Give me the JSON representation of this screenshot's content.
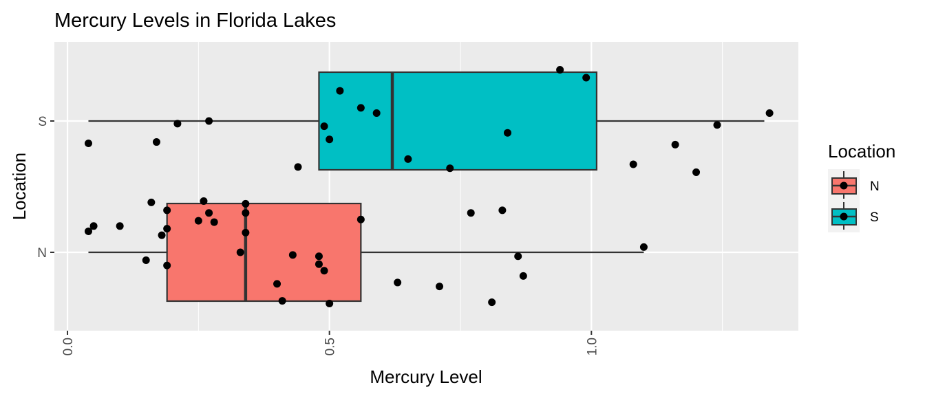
{
  "chart_data": {
    "type": "boxplot",
    "orientation": "horizontal",
    "title": "Mercury Levels in Florida Lakes",
    "xlabel": "Mercury Level",
    "ylabel": "Location",
    "xlim": [
      -0.025,
      1.395
    ],
    "x_ticks": [
      0.0,
      0.5,
      1.0
    ],
    "x_tick_labels": [
      "0.0",
      "0.5",
      "1.0"
    ],
    "categories": [
      "N",
      "S"
    ],
    "grid": true,
    "legend": {
      "title": "Location",
      "position": "right",
      "entries": [
        {
          "label": "N",
          "color": "#F8766D"
        },
        {
          "label": "S",
          "color": "#00BFC4"
        }
      ]
    },
    "series": [
      {
        "category": "N",
        "color": "#F8766D",
        "box": {
          "whisker_low": 0.04,
          "q1": 0.19,
          "median": 0.34,
          "q3": 0.56,
          "whisker_high": 1.1
        },
        "points": [
          [
            0.04,
            0.16
          ],
          [
            0.05,
            0.2
          ],
          [
            0.1,
            0.2
          ],
          [
            0.15,
            -0.06
          ],
          [
            0.16,
            0.38
          ],
          [
            0.18,
            0.13
          ],
          [
            0.19,
            0.32
          ],
          [
            0.19,
            0.18
          ],
          [
            0.19,
            -0.1
          ],
          [
            0.25,
            0.24
          ],
          [
            0.26,
            0.39
          ],
          [
            0.27,
            0.3
          ],
          [
            0.28,
            0.23
          ],
          [
            0.33,
            0.0
          ],
          [
            0.34,
            0.37
          ],
          [
            0.34,
            0.3
          ],
          [
            0.34,
            0.15
          ],
          [
            0.4,
            -0.24
          ],
          [
            0.41,
            -0.37
          ],
          [
            0.43,
            -0.02
          ],
          [
            0.48,
            -0.03
          ],
          [
            0.48,
            -0.09
          ],
          [
            0.49,
            -0.14
          ],
          [
            0.5,
            -0.39
          ],
          [
            0.56,
            0.25
          ],
          [
            0.63,
            -0.23
          ],
          [
            0.71,
            -0.26
          ],
          [
            0.77,
            0.3
          ],
          [
            0.81,
            -0.38
          ],
          [
            0.83,
            0.32
          ],
          [
            0.86,
            -0.03
          ],
          [
            0.87,
            -0.18
          ],
          [
            1.1,
            0.04
          ]
        ]
      },
      {
        "category": "S",
        "color": "#00BFC4",
        "box": {
          "whisker_low": 0.04,
          "q1": 0.48,
          "median": 0.62,
          "q3": 1.01,
          "whisker_high": 1.33
        },
        "points": [
          [
            0.04,
            -0.17
          ],
          [
            0.17,
            -0.16
          ],
          [
            0.21,
            -0.02
          ],
          [
            0.27,
            0.0
          ],
          [
            0.44,
            -0.35
          ],
          [
            0.49,
            -0.04
          ],
          [
            0.5,
            -0.14
          ],
          [
            0.52,
            0.23
          ],
          [
            0.56,
            0.1
          ],
          [
            0.59,
            0.06
          ],
          [
            0.65,
            -0.29
          ],
          [
            0.73,
            -0.36
          ],
          [
            0.84,
            -0.09
          ],
          [
            0.94,
            0.39
          ],
          [
            0.99,
            0.33
          ],
          [
            1.08,
            -0.33
          ],
          [
            1.16,
            -0.18
          ],
          [
            1.2,
            -0.39
          ],
          [
            1.24,
            -0.03
          ],
          [
            1.34,
            0.06
          ]
        ]
      }
    ]
  }
}
